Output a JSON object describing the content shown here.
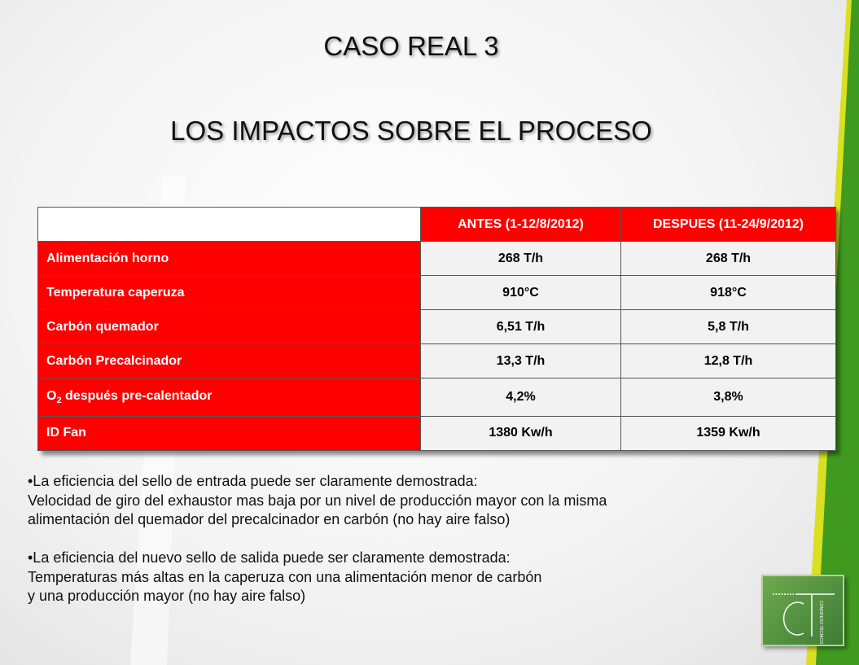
{
  "slide": {
    "title": "CASO REAL 3",
    "subtitle": "LOS IMPACTOS SOBRE EL PROCESO"
  },
  "table": {
    "headers": [
      "",
      "ANTES (1-12/8/2012)",
      "DESPUES (11-24/9/2012)"
    ],
    "rows": [
      {
        "label": "Alimentación horno",
        "antes": "268 T/h",
        "despues": "268 T/h"
      },
      {
        "label": "Temperatura caperuza",
        "antes": "910°C",
        "despues": "918°C"
      },
      {
        "label": "Carbón quemador",
        "antes": "6,51 T/h",
        "despues": "5,8 T/h"
      },
      {
        "label": "Carbón Precalcinador",
        "antes": "13,3 T/h",
        "despues": "12,8 T/h"
      },
      {
        "label_prefix": "O",
        "label_sub": "2",
        "label_suffix": " después pre-calentador",
        "antes": "4,2%",
        "despues": "3,8%"
      },
      {
        "label": "ID Fan",
        "antes": "1380 Kw/h",
        "despues": "1359 Kw/h"
      }
    ]
  },
  "notes": {
    "bullet1": "•La eficiencia del sello de entrada puede ser claramente demostrada:",
    "bullet1_line2": "Velocidad de giro del exhaustor mas baja por un nivel de producción mayor con la misma",
    "bullet1_line3": "alimentación del quemador del precalcinador en carbón (no hay aire falso)",
    "bullet2": "•La eficiencia del nuevo sello de salida puede ser claramente demostrada:",
    "bullet2_line2": "Temperaturas más altas en la caperuza con una alimentación menor de carbón",
    "bullet2_line3": "y una producción mayor (no hay aire falso)"
  },
  "logo": {
    "icon": "congreso-tecnico-ct-logo",
    "letters": "CT",
    "vertical_text": "CONGRESO TÉCNICO"
  },
  "colors": {
    "table_red": "#fe0000",
    "value_cell": "#f2f2f2",
    "accent_green": "#3f9a1f",
    "accent_yellow": "#d6e000"
  }
}
